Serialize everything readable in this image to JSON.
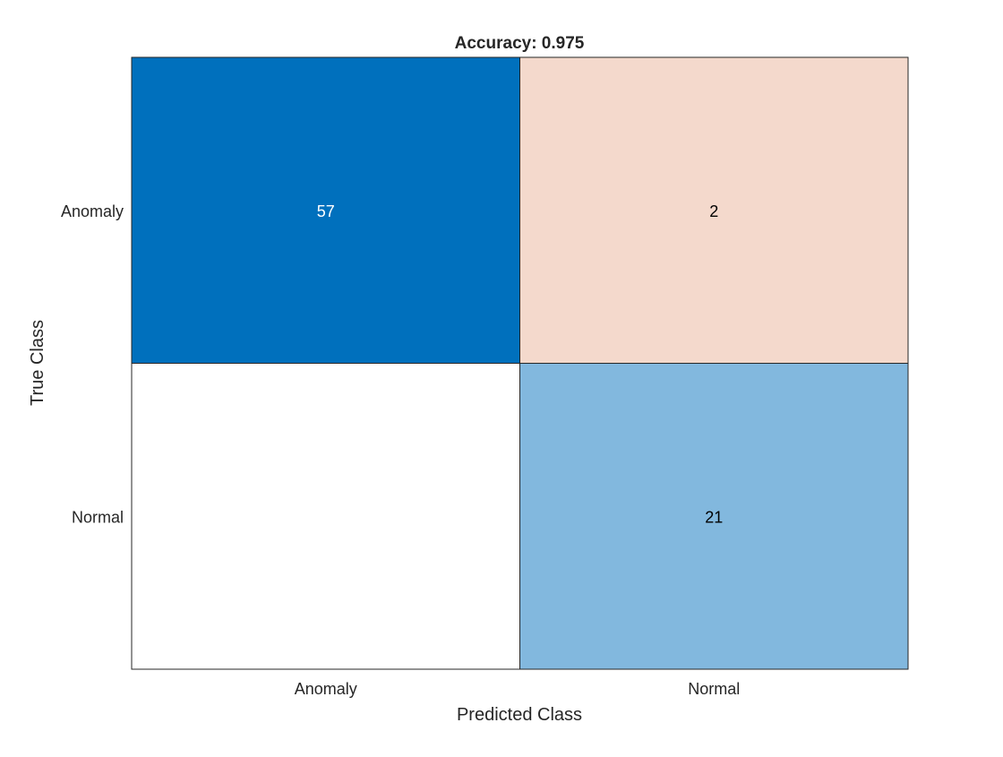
{
  "chart_data": {
    "type": "heatmap",
    "title": "Accuracy: 0.975",
    "xlabel": "Predicted Class",
    "ylabel": "True Class",
    "x_categories": [
      "Anomaly",
      "Normal"
    ],
    "y_categories": [
      "Anomaly",
      "Normal"
    ],
    "values": [
      [
        57,
        2
      ],
      [
        null,
        21
      ]
    ],
    "cell_colors": [
      [
        "#0070bd",
        "#f4d9cc"
      ],
      [
        "#ffffff",
        "#82b8de"
      ]
    ],
    "cell_text_colors": [
      [
        "#ffffff",
        "#000000"
      ],
      [
        "#000000",
        "#000000"
      ]
    ],
    "grid": true
  }
}
